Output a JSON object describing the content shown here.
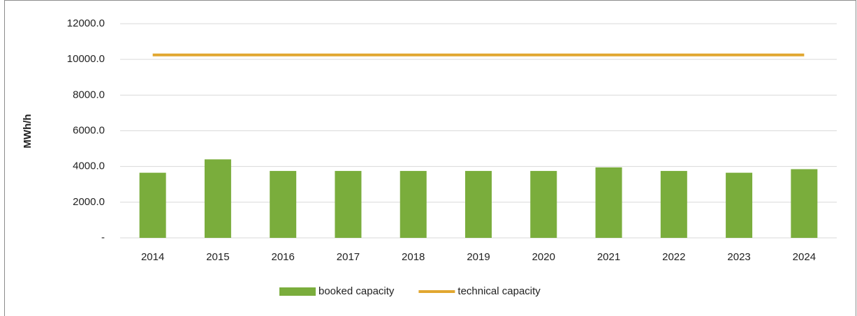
{
  "chart_data": {
    "type": "bar",
    "categories": [
      "2014",
      "2015",
      "2016",
      "2017",
      "2018",
      "2019",
      "2020",
      "2021",
      "2022",
      "2023",
      "2024"
    ],
    "series": [
      {
        "name": "booked capacity",
        "color": "#7aad3c",
        "type": "bar",
        "values": [
          3650,
          4400,
          3750,
          3750,
          3750,
          3750,
          3750,
          3950,
          3750,
          3650,
          3850
        ]
      },
      {
        "name": "technical capacity",
        "color": "#e1a730",
        "type": "line",
        "values": [
          10250,
          10250,
          10250,
          10250,
          10250,
          10250,
          10250,
          10250,
          10250,
          10250,
          10250
        ]
      }
    ],
    "ylabel": "MWh/h",
    "ylim": [
      0,
      12000
    ],
    "yticks": [
      {
        "value": 0,
        "label": "-"
      },
      {
        "value": 2000,
        "label": "2000.0"
      },
      {
        "value": 4000,
        "label": "4000.0"
      },
      {
        "value": 6000,
        "label": "6000.0"
      },
      {
        "value": 8000,
        "label": "8000.0"
      },
      {
        "value": 10000,
        "label": "10000.0"
      },
      {
        "value": 12000,
        "label": "12000.0"
      }
    ],
    "grid": true,
    "legend": "bottom"
  }
}
